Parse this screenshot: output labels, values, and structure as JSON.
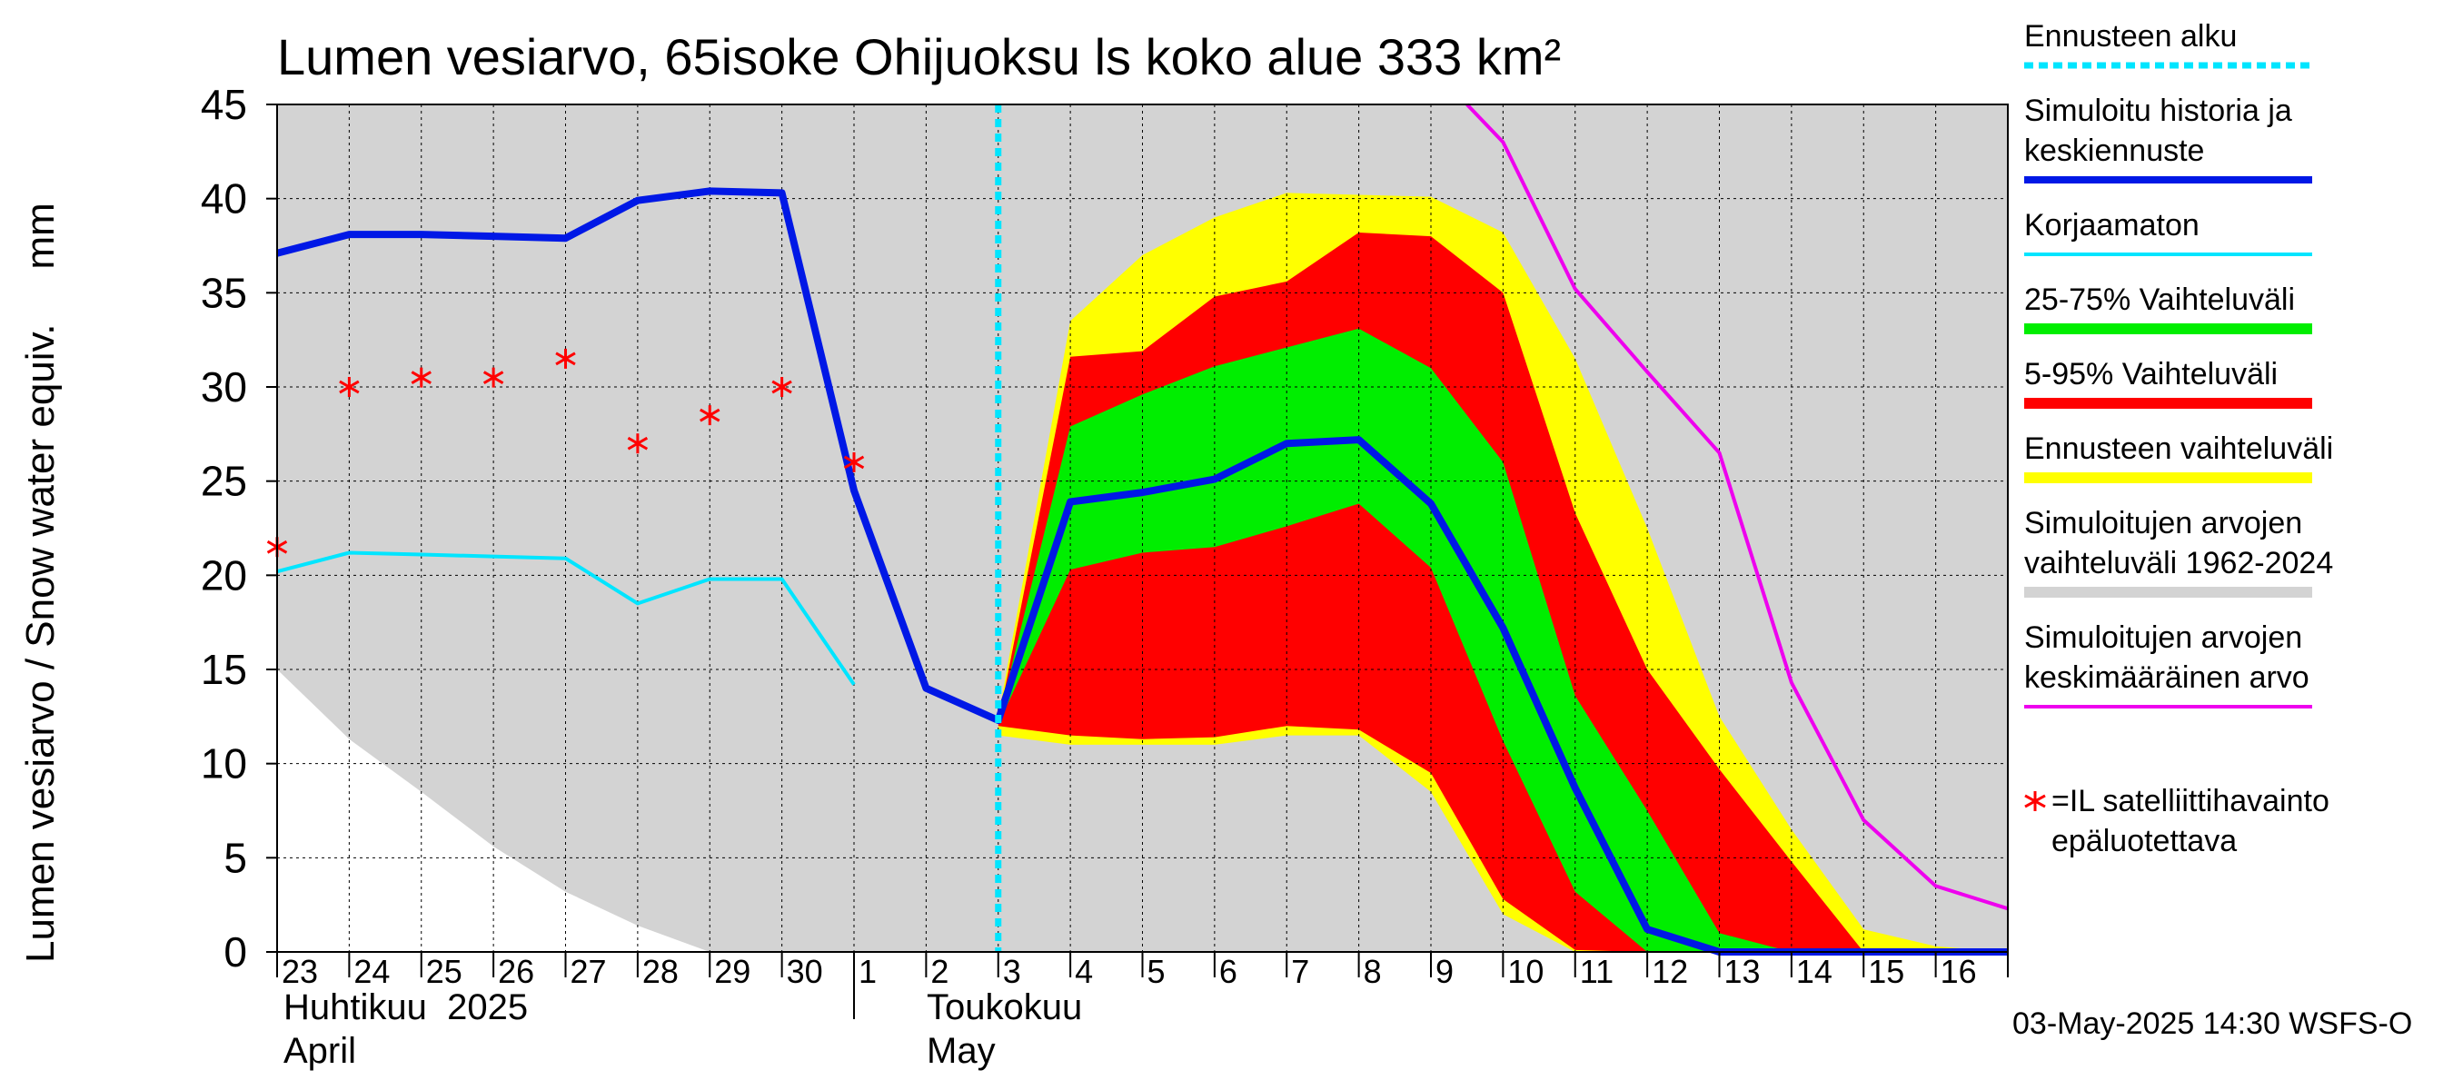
{
  "chart_data": {
    "type": "area",
    "title": "Lumen vesiarvo, 65isoke Ohijuoksu ls koko alue 333 km²",
    "ylabel": "Lumen vesiarvo / Snow water equiv.",
    "yunit": "mm",
    "ylim": [
      0,
      45
    ],
    "yticks": [
      0,
      5,
      10,
      15,
      20,
      25,
      30,
      35,
      40,
      45
    ],
    "x_days": [
      "2025-04-23",
      "2025-04-24",
      "2025-04-25",
      "2025-04-26",
      "2025-04-27",
      "2025-04-28",
      "2025-04-29",
      "2025-04-30",
      "2025-05-01",
      "2025-05-02",
      "2025-05-03",
      "2025-05-04",
      "2025-05-05",
      "2025-05-06",
      "2025-05-07",
      "2025-05-08",
      "2025-05-09",
      "2025-05-10",
      "2025-05-11",
      "2025-05-12",
      "2025-05-13",
      "2025-05-14",
      "2025-05-15",
      "2025-05-16",
      "2025-05-17"
    ],
    "tick_labels": [
      "23",
      "24",
      "25",
      "26",
      "27",
      "28",
      "29",
      "30",
      "1",
      "2",
      "3",
      "4",
      "5",
      "6",
      "7",
      "8",
      "9",
      "10",
      "11",
      "12",
      "13",
      "14",
      "15",
      "16"
    ],
    "month_labels": [
      {
        "fi": "Huhtikuu  2025",
        "en": "April"
      },
      {
        "fi": "Toukokuu",
        "en": "May"
      }
    ],
    "forecast_start": "2025-05-03 00:00",
    "grid": true,
    "legend_placement": "right",
    "series": [
      {
        "name": "Simuloitujen arvojen vaihteluväli 1962-2024",
        "kind": "band",
        "color": "#d3d3d3",
        "x": [
          "2025-04-23",
          "2025-04-24",
          "2025-04-25",
          "2025-04-26",
          "2025-04-27",
          "2025-04-28",
          "2025-04-29",
          "2025-05-17"
        ],
        "lower": [
          15,
          11.3,
          8.5,
          5.6,
          3.2,
          1.4,
          0,
          0
        ],
        "upper": [
          45,
          45,
          45,
          45,
          45,
          45,
          45,
          45
        ]
      },
      {
        "name": "Ennusteen vaihteluväli",
        "kind": "band",
        "color": "#ffff00",
        "x": [
          "2025-05-03",
          "2025-05-04",
          "2025-05-05",
          "2025-05-06",
          "2025-05-07",
          "2025-05-08",
          "2025-05-09",
          "2025-05-10",
          "2025-05-11",
          "2025-05-12",
          "2025-05-13",
          "2025-05-14",
          "2025-05-15",
          "2025-05-16",
          "2025-05-17"
        ],
        "lower": [
          11.5,
          11,
          11,
          11,
          11.5,
          11.5,
          8.5,
          2,
          0,
          0,
          0,
          0,
          0,
          0,
          0
        ],
        "upper": [
          12.5,
          33.5,
          37,
          39,
          40.3,
          40.2,
          40.1,
          38.2,
          31.5,
          22.5,
          12.5,
          6.5,
          1.2,
          0.3,
          0
        ]
      },
      {
        "name": "5-95% Vaihteluväli",
        "kind": "band",
        "color": "#ff0000",
        "x": [
          "2025-05-03",
          "2025-05-04",
          "2025-05-05",
          "2025-05-06",
          "2025-05-07",
          "2025-05-08",
          "2025-05-09",
          "2025-05-10",
          "2025-05-11",
          "2025-05-12",
          "2025-05-13",
          "2025-05-14",
          "2025-05-15",
          "2025-05-16",
          "2025-05-17"
        ],
        "lower": [
          12,
          11.5,
          11.3,
          11.4,
          12,
          11.8,
          9.5,
          2.8,
          0.1,
          0,
          0,
          0,
          0,
          0,
          0
        ],
        "upper": [
          12.2,
          31.6,
          31.9,
          34.8,
          35.6,
          38.2,
          38,
          35,
          23.3,
          15,
          9.7,
          4.8,
          0,
          0,
          0
        ]
      },
      {
        "name": "25-75% Vaihteluväli",
        "kind": "band",
        "color": "#00ee00",
        "x": [
          "2025-05-03",
          "2025-05-04",
          "2025-05-05",
          "2025-05-06",
          "2025-05-07",
          "2025-05-08",
          "2025-05-09",
          "2025-05-10",
          "2025-05-11",
          "2025-05-12",
          "2025-05-13",
          "2025-05-14",
          "2025-05-15",
          "2025-05-16",
          "2025-05-17"
        ],
        "lower": [
          12.1,
          20.3,
          21.2,
          21.5,
          22.6,
          23.8,
          20.4,
          11.2,
          3.2,
          0,
          0,
          0,
          0,
          0,
          0
        ],
        "upper": [
          12.3,
          27.9,
          29.6,
          31.1,
          32.1,
          33.1,
          31,
          26,
          13.6,
          7.5,
          1,
          0,
          0,
          0,
          0
        ]
      },
      {
        "name": "Simuloitujen arvojen keskimääräinen arvo",
        "kind": "line",
        "color": "#ee00ee",
        "x": [
          "2025-05-09 12:00",
          "2025-05-10",
          "2025-05-11",
          "2025-05-12",
          "2025-05-13",
          "2025-05-14",
          "2025-05-15",
          "2025-05-16",
          "2025-05-17"
        ],
        "y": [
          45,
          43,
          35.2,
          30.8,
          26.5,
          14.3,
          7,
          3.5,
          2.3
        ]
      },
      {
        "name": "Korjaamaton",
        "kind": "line",
        "color": "#00e5ff",
        "x": [
          "2025-04-23",
          "2025-04-24",
          "2025-04-25",
          "2025-04-26",
          "2025-04-27",
          "2025-04-28",
          "2025-04-29",
          "2025-04-30",
          "2025-05-01"
        ],
        "y": [
          20.2,
          21.2,
          21.1,
          21,
          20.9,
          18.5,
          19.8,
          19.8,
          14.2
        ]
      },
      {
        "name": "Simuloitu historia ja keskiennuste",
        "kind": "line",
        "color": "#0018e6",
        "x": [
          "2025-04-23",
          "2025-04-24",
          "2025-04-25",
          "2025-04-26",
          "2025-04-27",
          "2025-04-28",
          "2025-04-29",
          "2025-04-30",
          "2025-05-01",
          "2025-05-02",
          "2025-05-03",
          "2025-05-04",
          "2025-05-05",
          "2025-05-06",
          "2025-05-07",
          "2025-05-08",
          "2025-05-09",
          "2025-05-10",
          "2025-05-11",
          "2025-05-12",
          "2025-05-13",
          "2025-05-14",
          "2025-05-15",
          "2025-05-16",
          "2025-05-17"
        ],
        "y": [
          37.1,
          38.1,
          38.1,
          38,
          37.9,
          39.9,
          40.4,
          40.3,
          24.5,
          14,
          12.3,
          23.9,
          24.4,
          25.1,
          27,
          27.2,
          23.8,
          17.2,
          8.7,
          1.2,
          0,
          0,
          0,
          0,
          0
        ]
      },
      {
        "name": "=IL satelliittihavainto epäluotettava",
        "kind": "scatter",
        "color": "#ff0000",
        "x": [
          "2025-04-23",
          "2025-04-24",
          "2025-04-25",
          "2025-04-26",
          "2025-04-27",
          "2025-04-28",
          "2025-04-29",
          "2025-04-30",
          "2025-05-01"
        ],
        "y": [
          21.5,
          30,
          30.5,
          30.5,
          31.5,
          27,
          28.5,
          30,
          26
        ]
      }
    ],
    "legend": [
      {
        "label": "Ennusteen alku",
        "color": "#00e5ff",
        "style": "dotted"
      },
      {
        "label": "Simuloitu historia ja\nkeskiennuste",
        "color": "#0018e6",
        "style": "thick"
      },
      {
        "label": "Korjaamaton",
        "color": "#00e5ff",
        "style": "line"
      },
      {
        "label": "25-75% Vaihteluväli",
        "color": "#00ee00",
        "style": "band"
      },
      {
        "label": "5-95% Vaihteluväli",
        "color": "#ff0000",
        "style": "band"
      },
      {
        "label": "Ennusteen vaihteluväli",
        "color": "#ffff00",
        "style": "band"
      },
      {
        "label": "Simuloitujen arvojen\nvaihteluväli 1962-2024",
        "color": "#d3d3d3",
        "style": "band"
      },
      {
        "label": "Simuloitujen arvojen\nkeskimääräinen arvo",
        "color": "#ee00ee",
        "style": "line"
      },
      {
        "label": "=IL satelliittihavainto\nepäluotettava",
        "color": "#ff0000",
        "style": "marker"
      }
    ]
  },
  "timestamp": "03-May-2025 14:30 WSFS-O"
}
